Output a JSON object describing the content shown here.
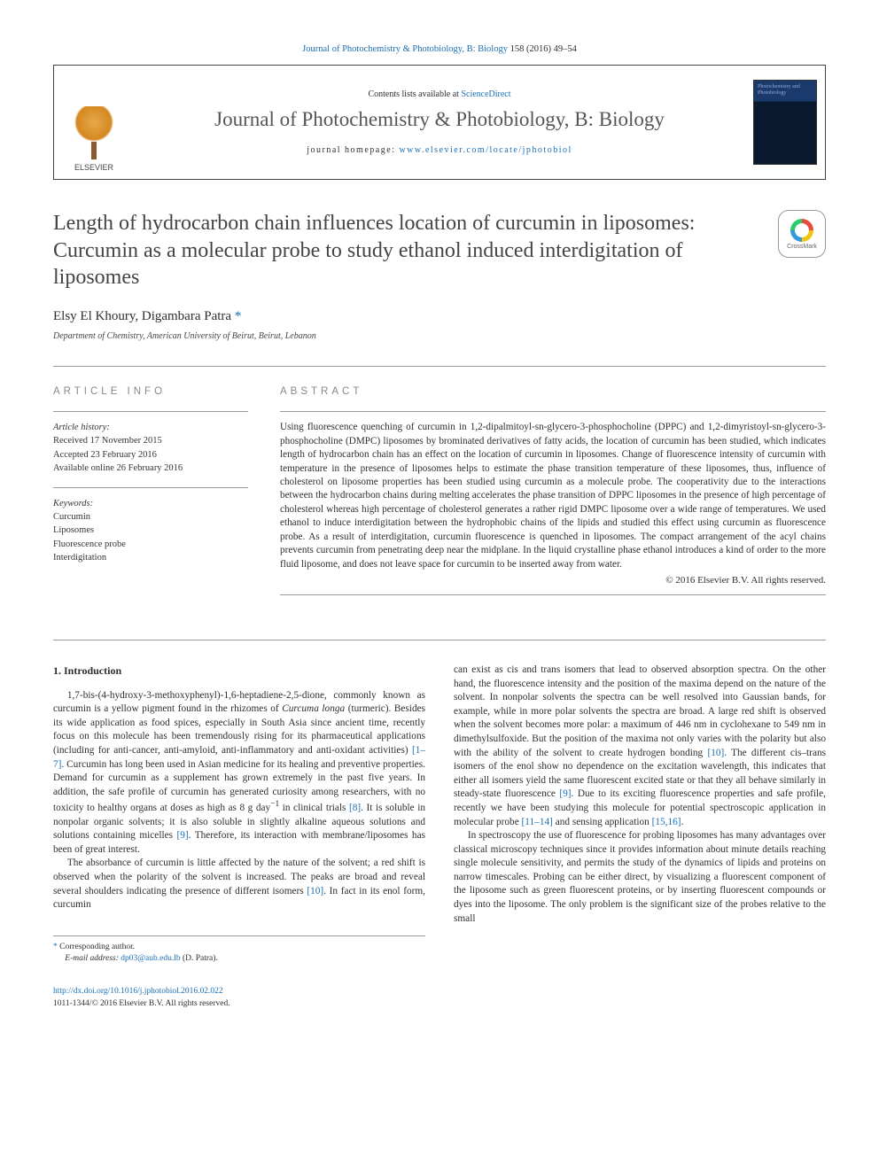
{
  "toplink": {
    "journal": "Journal of Photochemistry & Photobiology, B: Biology",
    "citation": "158 (2016) 49–54"
  },
  "header": {
    "contents_prefix": "Contents lists available at ",
    "contents_link": "ScienceDirect",
    "journal_name": "Journal of Photochemistry & Photobiology, B: Biology",
    "homepage_prefix": "journal homepage: ",
    "homepage_url": "www.elsevier.com/locate/jphotobiol",
    "elsevier_label": "ELSEVIER",
    "cover_text": "Photochemistry and Photobiology"
  },
  "title": "Length of hydrocarbon chain influences location of curcumin in liposomes: Curcumin as a molecular probe to study ethanol induced interdigitation of liposomes",
  "crossmark_label": "CrossMark",
  "authors": {
    "a1": "Elsy El Khoury",
    "a2": "Digambara Patra ",
    "mark": "*"
  },
  "affiliation": "Department of Chemistry, American University of Beirut, Beirut, Lebanon",
  "labels": {
    "info": "ARTICLE INFO",
    "abstract": "ABSTRACT"
  },
  "history": {
    "label": "Article history:",
    "received": "Received 17 November 2015",
    "accepted": "Accepted 23 February 2016",
    "online": "Available online 26 February 2016"
  },
  "keywords": {
    "label": "Keywords:",
    "k1": "Curcumin",
    "k2": "Liposomes",
    "k3": "Fluorescence probe",
    "k4": "Interdigitation"
  },
  "abstract": "Using fluorescence quenching of curcumin in 1,2-dipalmitoyl-sn-glycero-3-phosphocholine (DPPC) and 1,2-dimyristoyl-sn-glycero-3-phosphocholine (DMPC) liposomes by brominated derivatives of fatty acids, the location of curcumin has been studied, which indicates length of hydrocarbon chain has an effect on the location of curcumin in liposomes. Change of fluorescence intensity of curcumin with temperature in the presence of liposomes helps to estimate the phase transition temperature of these liposomes, thus, influence of cholesterol on liposome properties has been studied using curcumin as a molecule probe. The cooperativity due to the interactions between the hydrocarbon chains during melting accelerates the phase transition of DPPC liposomes in the presence of high percentage of cholesterol whereas high percentage of cholesterol generates a rather rigid DMPC liposome over a wide range of temperatures. We used ethanol to induce interdigitation between the hydrophobic chains of the lipids and studied this effect using curcumin as fluorescence probe. As a result of interdigitation, curcumin fluorescence is quenched in liposomes. The compact arrangement of the acyl chains prevents curcumin from penetrating deep near the midplane. In the liquid crystalline phase ethanol introduces a kind of order to the more fluid liposome, and does not leave space for curcumin to be inserted away from water.",
  "copyright": "© 2016 Elsevier B.V. All rights reserved.",
  "section1": {
    "heading": "1. Introduction"
  },
  "body": {
    "c1p1a": "1,7-bis-(4-hydroxy-3-methoxyphenyl)-1,6-heptadiene-2,5-dione, commonly known as curcumin is a yellow pigment found in the rhizomes of ",
    "c1p1_i": "Curcuma longa",
    "c1p1b": " (turmeric). Besides its wide application as food spices, especially in South Asia since ancient time, recently focus on this molecule has been tremendously rising for its pharmaceutical applications (including for anti-cancer, anti-amyloid, anti-inflammatory and anti-oxidant activities) ",
    "c1p1_r1": "[1–7]",
    "c1p1c": ". Curcumin has long been used in Asian medicine for its healing and preventive properties. Demand for curcumin as a supplement has grown extremely in the past five years. In addition, the safe profile of curcumin has generated curiosity among researchers, with no toxicity to healthy organs at doses as high as 8 g day",
    "c1p1_sup": "−1",
    "c1p1d": " in clinical trials ",
    "c1p1_r2": "[8]",
    "c1p1e": ". It is soluble in nonpolar organic solvents; it is also soluble in slightly alkaline aqueous solutions and solutions containing micelles ",
    "c1p1_r3": "[9]",
    "c1p1f": ". Therefore, its interaction with membrane/liposomes has been of great interest.",
    "c1p2a": "The absorbance of curcumin is little affected by the nature of the solvent; a red shift is observed when the polarity of the solvent is increased. The peaks are broad and reveal several shoulders indicating the presence of different isomers ",
    "c1p2_r1": "[10]",
    "c1p2b": ". In fact in its enol form, curcumin",
    "c2p1a": "can exist as cis and trans isomers that lead to observed absorption spectra. On the other hand, the fluorescence intensity and the position of the maxima depend on the nature of the solvent. In nonpolar solvents the spectra can be well resolved into Gaussian bands, for example, while in more polar solvents the spectra are broad. A large red shift is observed when the solvent becomes more polar: a maximum of 446 nm in cyclohexane to 549 nm in dimethylsulfoxide. But the position of the maxima not only varies with the polarity but also with the ability of the solvent to create hydrogen bonding ",
    "c2p1_r1": "[10]",
    "c2p1b": ". The different cis–trans isomers of the enol show no dependence on the excitation wavelength, this indicates that either all isomers yield the same fluorescent excited state or that they all behave similarly in steady-state fluorescence ",
    "c2p1_r2": "[9]",
    "c2p1c": ". Due to its exciting fluorescence properties and safe profile, recently we have been studying this molecule for potential spectroscopic application in molecular probe ",
    "c2p1_r3": "[11–14]",
    "c2p1d": " and sensing application ",
    "c2p1_r4": "[15,16]",
    "c2p1e": ".",
    "c2p2": "In spectroscopy the use of fluorescence for probing liposomes has many advantages over classical microscopy techniques since it provides information about minute details reaching single molecule sensitivity, and permits the study of the dynamics of lipids and proteins on narrow timescales. Probing can be either direct, by visualizing a fluorescent component of the liposome such as green fluorescent proteins, or by inserting fluorescent compounds or dyes into the liposome. The only problem is the significant size of the probes relative to the small"
  },
  "footnotes": {
    "corr": "Corresponding author.",
    "email_label": "E-mail address: ",
    "email": "dp03@aub.edu.lb",
    "email_name": " (D. Patra)."
  },
  "bottom": {
    "doi": "http://dx.doi.org/10.1016/j.jphotobiol.2016.02.022",
    "issn": "1011-1344/© 2016 Elsevier B.V. All rights reserved."
  },
  "colors": {
    "link": "#1a6fb5",
    "text": "#2e2e2e",
    "rule": "#999999"
  }
}
